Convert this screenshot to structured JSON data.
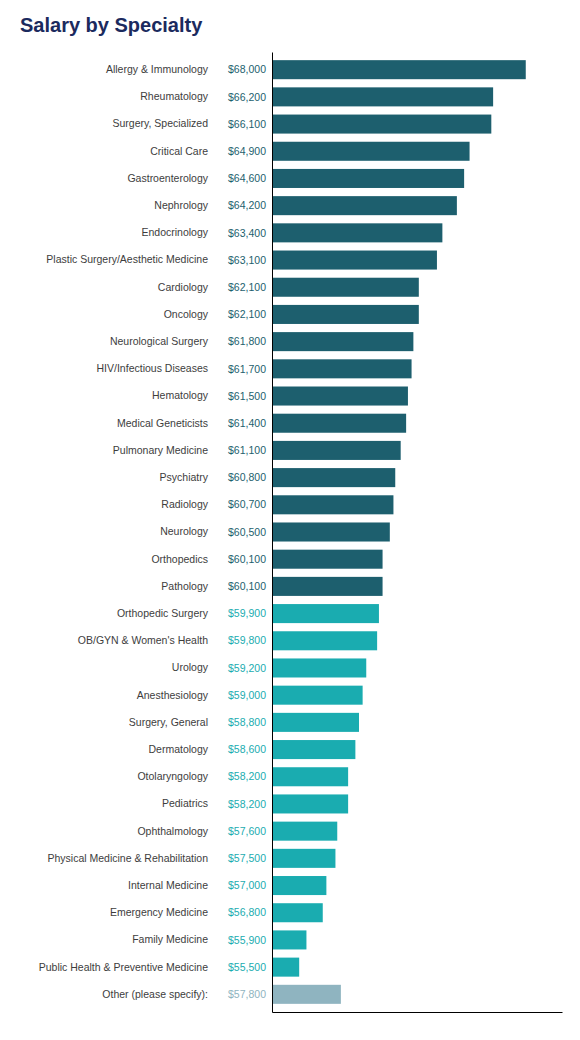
{
  "chart_data": {
    "type": "bar",
    "orientation": "horizontal",
    "title": "Salary by Specialty",
    "categories": [
      "Allergy & Immunology",
      "Rheumatology",
      "Surgery, Specialized",
      "Critical Care",
      "Gastroenterology",
      "Nephrology",
      "Endocrinology",
      "Plastic Surgery/Aesthetic Medicine",
      "Cardiology",
      "Oncology",
      "Neurological Surgery",
      "HIV/Infectious Diseases",
      "Hematology",
      "Medical Geneticists",
      "Pulmonary Medicine",
      "Psychiatry",
      "Radiology",
      "Neurology",
      "Orthopedics",
      "Pathology",
      "Orthopedic Surgery",
      "OB/GYN & Women's Health",
      "Urology",
      "Anesthesiology",
      "Surgery, General",
      "Dermatology",
      "Otolaryngology",
      "Pediatrics",
      "Ophthalmology",
      "Physical Medicine & Rehabilitation",
      "Internal Medicine",
      "Emergency Medicine",
      "Family Medicine",
      "Public Health & Preventive Medicine",
      "Other (please specify):"
    ],
    "values": [
      68000,
      66200,
      66100,
      64900,
      64600,
      64200,
      63400,
      63100,
      62100,
      62100,
      61800,
      61700,
      61500,
      61400,
      61100,
      60800,
      60700,
      60500,
      60100,
      60100,
      59900,
      59800,
      59200,
      59000,
      58800,
      58600,
      58200,
      58200,
      57600,
      57500,
      57000,
      56800,
      55900,
      55500,
      57800
    ],
    "value_labels": [
      "$68,000",
      "$66,200",
      "$66,100",
      "$64,900",
      "$64,600",
      "$64,200",
      "$63,400",
      "$63,100",
      "$62,100",
      "$62,100",
      "$61,800",
      "$61,700",
      "$61,500",
      "$61,400",
      "$61,100",
      "$60,800",
      "$60,700",
      "$60,500",
      "$60,100",
      "$60,100",
      "$59,900",
      "$59,800",
      "$59,200",
      "$59,000",
      "$58,800",
      "$58,600",
      "$58,200",
      "$58,200",
      "$57,600",
      "$57,500",
      "$57,000",
      "$56,800",
      "$55,900",
      "$55,500",
      "$57,800"
    ],
    "colors": [
      "#1d5f6e",
      "#1d5f6e",
      "#1d5f6e",
      "#1d5f6e",
      "#1d5f6e",
      "#1d5f6e",
      "#1d5f6e",
      "#1d5f6e",
      "#1d5f6e",
      "#1d5f6e",
      "#1d5f6e",
      "#1d5f6e",
      "#1d5f6e",
      "#1d5f6e",
      "#1d5f6e",
      "#1d5f6e",
      "#1d5f6e",
      "#1d5f6e",
      "#1d5f6e",
      "#1d5f6e",
      "#1aacb0",
      "#1aacb0",
      "#1aacb0",
      "#1aacb0",
      "#1aacb0",
      "#1aacb0",
      "#1aacb0",
      "#1aacb0",
      "#1aacb0",
      "#1aacb0",
      "#1aacb0",
      "#1aacb0",
      "#1aacb0",
      "#1aacb0",
      "#8fb4c0"
    ],
    "xlim": [
      54000,
      70000
    ],
    "data_labels": true,
    "tick_labels": "y",
    "grid": false
  }
}
